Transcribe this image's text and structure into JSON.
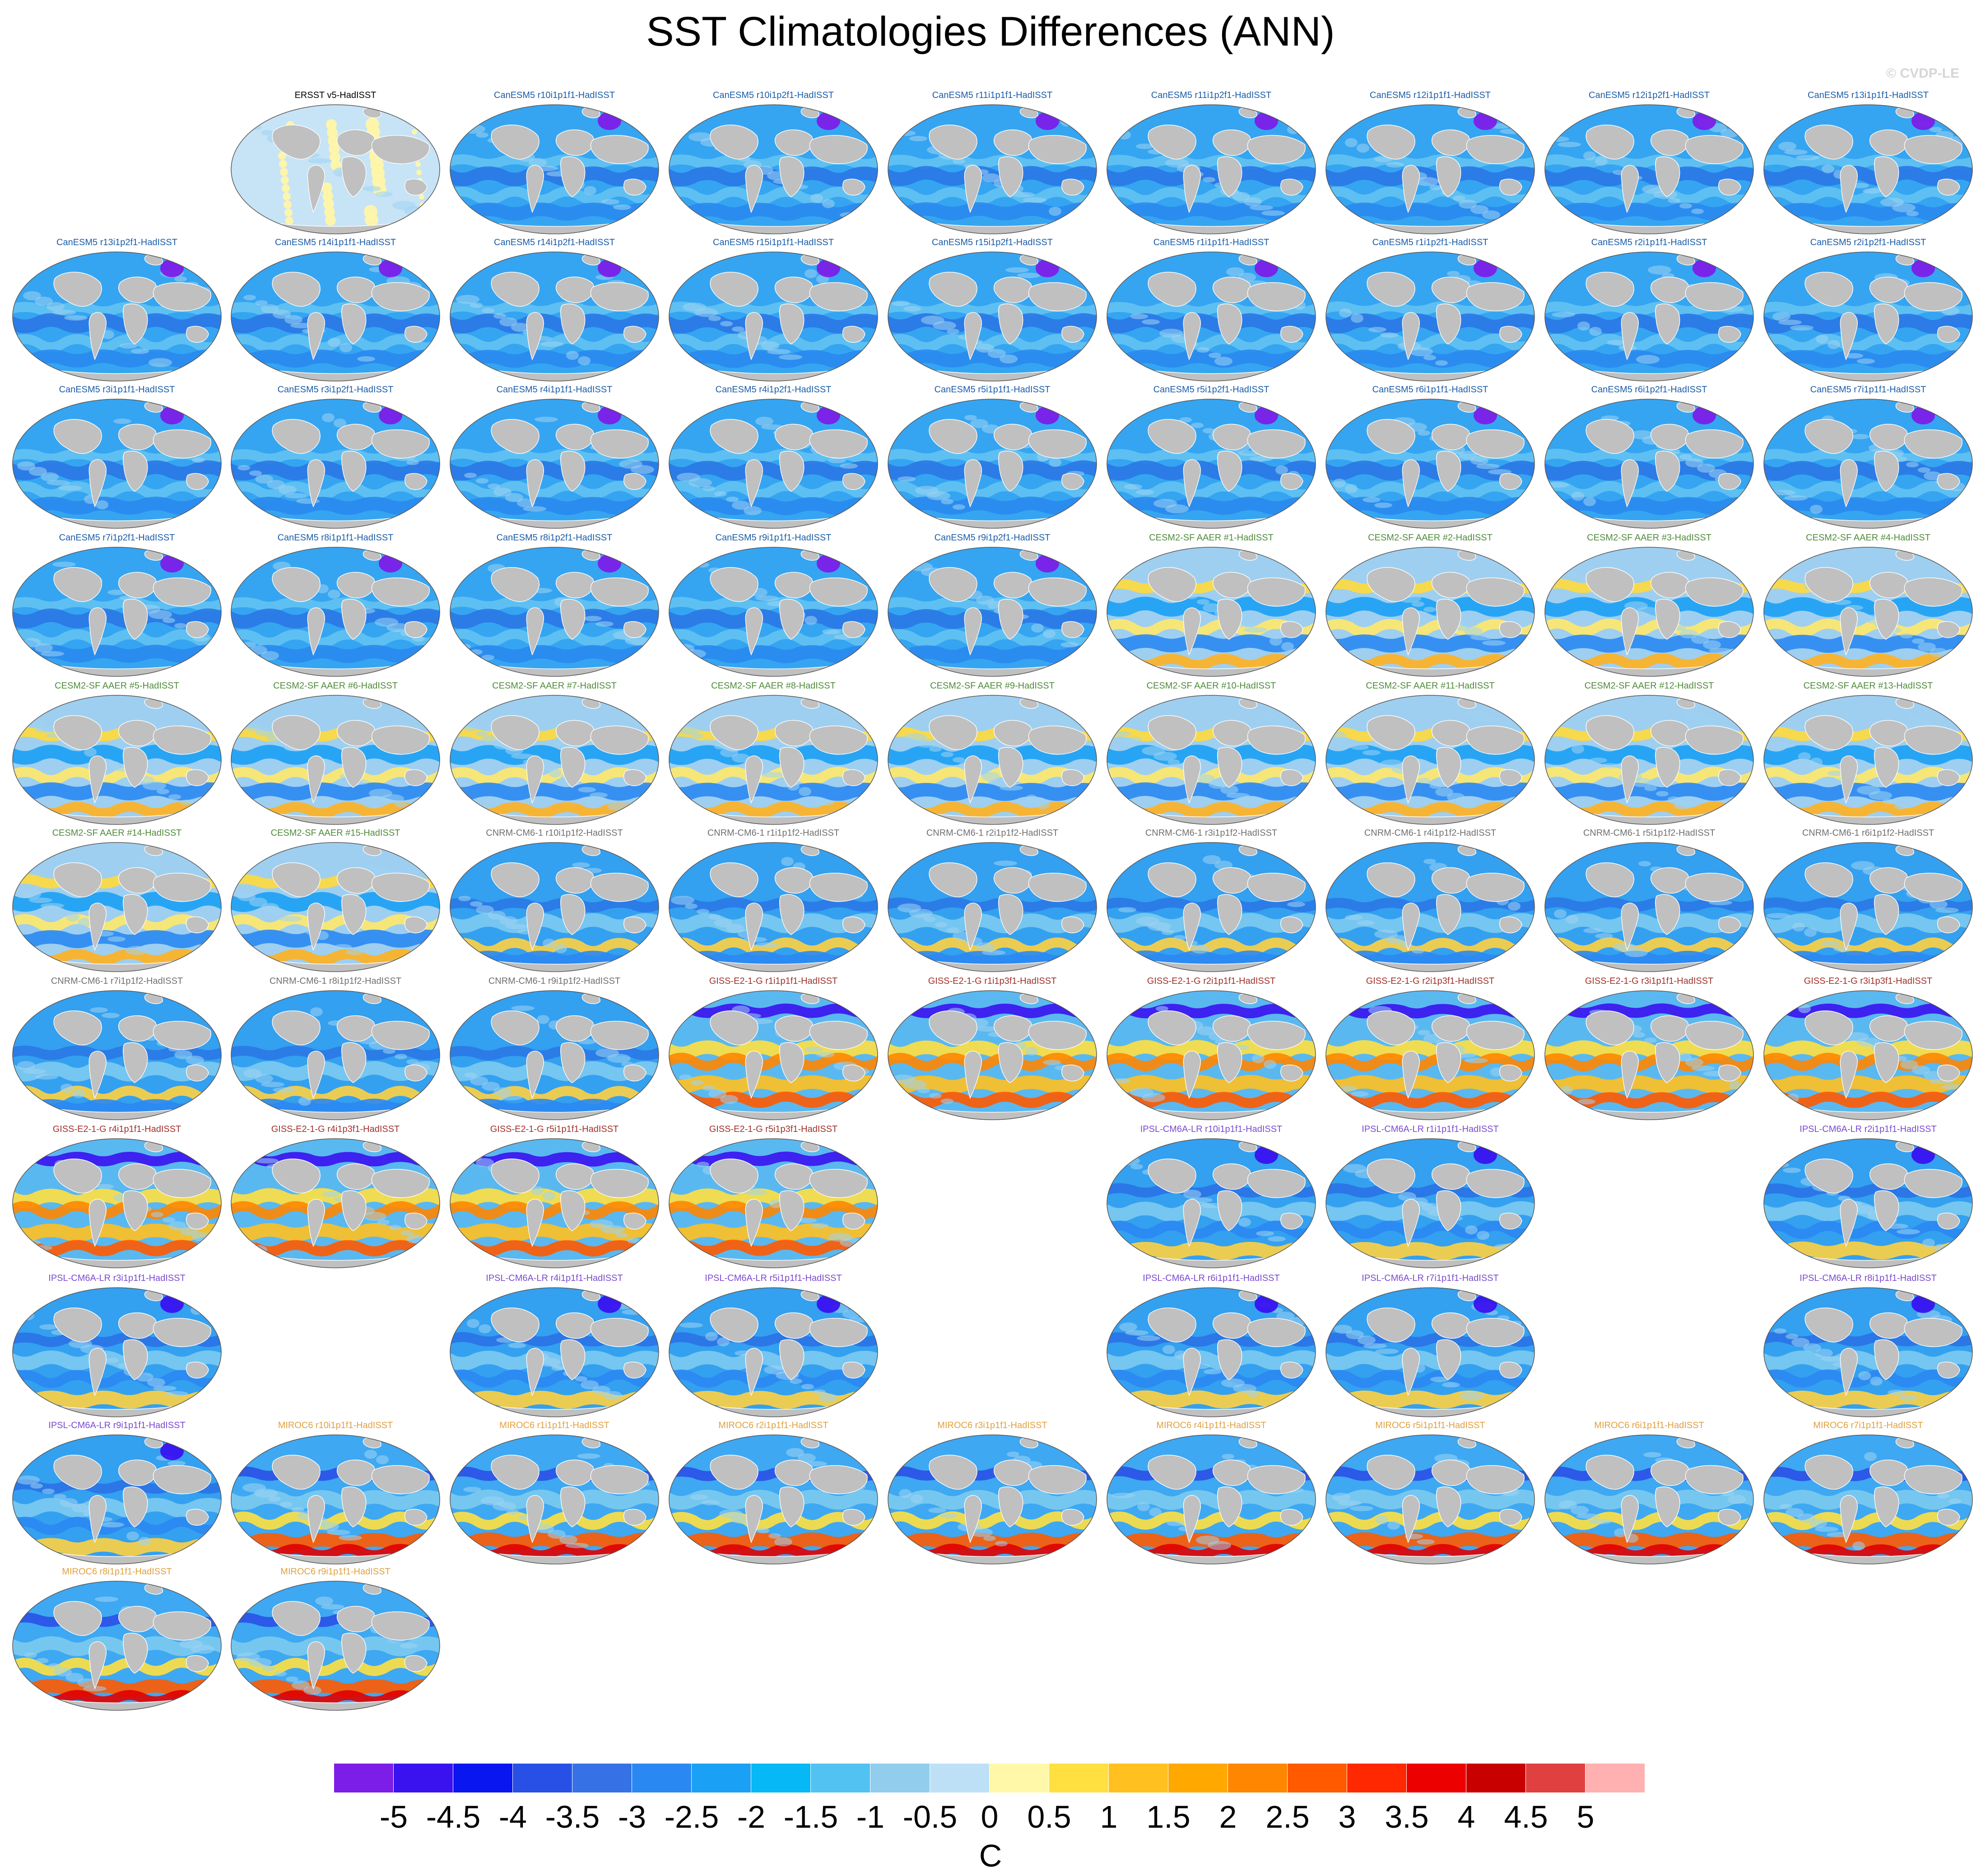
{
  "title": "SST Climatologies Differences (ANN)",
  "credit": "© CVDP-LE",
  "group_colors": {
    "obs": "#000000",
    "CanESM5": "#1a5ca8",
    "CESM2-SF AAER": "#4f8b3a",
    "CNRM-CM6-1": "#707070",
    "GISS-E2-1-G": "#a0302a",
    "IPSL-CM6A-LR": "#7a4ad0",
    "MIROC6": "#e0a040"
  },
  "panel_groups": [
    "obs",
    "CanESM5",
    "CanESM5",
    "CanESM5",
    "CanESM5",
    "CanESM5",
    "CanESM5",
    "CanESM5",
    "CanESM5",
    "CanESM5",
    "CanESM5",
    "CanESM5",
    "CanESM5",
    "CanESM5",
    "CanESM5",
    "CanESM5",
    "CanESM5",
    "CanESM5",
    "CanESM5",
    "CanESM5",
    "CanESM5",
    "CanESM5",
    "CanESM5",
    "CanESM5",
    "CanESM5",
    "CanESM5",
    "CanESM5",
    "CanESM5",
    "CanESM5",
    "CanESM5",
    "CanESM5",
    "CESM2-SF AAER",
    "CESM2-SF AAER",
    "CESM2-SF AAER",
    "CESM2-SF AAER",
    "CESM2-SF AAER",
    "CESM2-SF AAER",
    "CESM2-SF AAER",
    "CESM2-SF AAER",
    "CESM2-SF AAER",
    "CESM2-SF AAER",
    "CESM2-SF AAER",
    "CESM2-SF AAER",
    "CESM2-SF AAER",
    "CESM2-SF AAER",
    "CESM2-SF AAER",
    "CNRM-CM6-1",
    "CNRM-CM6-1",
    "CNRM-CM6-1",
    "CNRM-CM6-1",
    "CNRM-CM6-1",
    "CNRM-CM6-1",
    "CNRM-CM6-1",
    "CNRM-CM6-1",
    "CNRM-CM6-1",
    "CNRM-CM6-1",
    "GISS-E2-1-G",
    "GISS-E2-1-G",
    "GISS-E2-1-G",
    "GISS-E2-1-G",
    "GISS-E2-1-G",
    "GISS-E2-1-G",
    "GISS-E2-1-G",
    "GISS-E2-1-G",
    "GISS-E2-1-G",
    "GISS-E2-1-G",
    "IPSL-CM6A-LR",
    "IPSL-CM6A-LR",
    "IPSL-CM6A-LR",
    "IPSL-CM6A-LR",
    "IPSL-CM6A-LR",
    "IPSL-CM6A-LR",
    "IPSL-CM6A-LR",
    "IPSL-CM6A-LR",
    "IPSL-CM6A-LR",
    "IPSL-CM6A-LR",
    "MIROC6",
    "MIROC6",
    "MIROC6",
    "MIROC6",
    "MIROC6",
    "MIROC6",
    "MIROC6",
    "MIROC6",
    "MIROC6",
    "MIROC6"
  ],
  "panel_labels": [
    "ERSST v5-HadISST",
    "CanESM5 r10i1p1f1-HadISST",
    "CanESM5 r10i1p2f1-HadISST",
    "CanESM5 r11i1p1f1-HadISST",
    "CanESM5 r11i1p2f1-HadISST",
    "CanESM5 r12i1p1f1-HadISST",
    "CanESM5 r12i1p2f1-HadISST",
    "CanESM5 r13i1p1f1-HadISST",
    "CanESM5 r13i1p2f1-HadISST",
    "CanESM5 r14i1p1f1-HadISST",
    "CanESM5 r14i1p2f1-HadISST",
    "CanESM5 r15i1p1f1-HadISST",
    "CanESM5 r15i1p2f1-HadISST",
    "CanESM5 r1i1p1f1-HadISST",
    "CanESM5 r1i1p2f1-HadISST",
    "CanESM5 r2i1p1f1-HadISST",
    "CanESM5 r2i1p2f1-HadISST",
    "CanESM5 r3i1p1f1-HadISST",
    "CanESM5 r3i1p2f1-HadISST",
    "CanESM5 r4i1p1f1-HadISST",
    "CanESM5 r4i1p2f1-HadISST",
    "CanESM5 r5i1p1f1-HadISST",
    "CanESM5 r5i1p2f1-HadISST",
    "CanESM5 r6i1p1f1-HadISST",
    "CanESM5 r6i1p2f1-HadISST",
    "CanESM5 r7i1p1f1-HadISST",
    "CanESM5 r7i1p2f1-HadISST",
    "CanESM5 r8i1p1f1-HadISST",
    "CanESM5 r8i1p2f1-HadISST",
    "CanESM5 r9i1p1f1-HadISST",
    "CanESM5 r9i1p2f1-HadISST",
    "CESM2-SF AAER #1-HadISST",
    "CESM2-SF AAER #2-HadISST",
    "CESM2-SF AAER #3-HadISST",
    "CESM2-SF AAER #4-HadISST",
    "CESM2-SF AAER #5-HadISST",
    "CESM2-SF AAER #6-HadISST",
    "CESM2-SF AAER #7-HadISST",
    "CESM2-SF AAER #8-HadISST",
    "CESM2-SF AAER #9-HadISST",
    "CESM2-SF AAER #10-HadISST",
    "CESM2-SF AAER #11-HadISST",
    "CESM2-SF AAER #12-HadISST",
    "CESM2-SF AAER #13-HadISST",
    "CESM2-SF AAER #14-HadISST",
    "CESM2-SF AAER #15-HadISST",
    "CNRM-CM6-1 r10i1p1f2-HadISST",
    "CNRM-CM6-1 r1i1p1f2-HadISST",
    "CNRM-CM6-1 r2i1p1f2-HadISST",
    "CNRM-CM6-1 r3i1p1f2-HadISST",
    "CNRM-CM6-1 r4i1p1f2-HadISST",
    "CNRM-CM6-1 r5i1p1f2-HadISST",
    "CNRM-CM6-1 r6i1p1f2-HadISST",
    "CNRM-CM6-1 r7i1p1f2-HadISST",
    "CNRM-CM6-1 r8i1p1f2-HadISST",
    "CNRM-CM6-1 r9i1p1f2-HadISST",
    "GISS-E2-1-G r1i1p1f1-HadISST",
    "GISS-E2-1-G r1i1p3f1-HadISST",
    "GISS-E2-1-G r2i1p1f1-HadISST",
    "GISS-E2-1-G r2i1p3f1-HadISST",
    "GISS-E2-1-G r3i1p1f1-HadISST",
    "GISS-E2-1-G r3i1p3f1-HadISST",
    "GISS-E2-1-G r4i1p1f1-HadISST",
    "GISS-E2-1-G r4i1p3f1-HadISST",
    "GISS-E2-1-G r5i1p1f1-HadISST",
    "GISS-E2-1-G r5i1p3f1-HadISST",
    "IPSL-CM6A-LR r10i1p1f1-HadISST",
    "IPSL-CM6A-LR r1i1p1f1-HadISST",
    "IPSL-CM6A-LR r2i1p1f1-HadISST",
    "IPSL-CM6A-LR r3i1p1f1-HadISST",
    "IPSL-CM6A-LR r4i1p1f1-HadISST",
    "IPSL-CM6A-LR r5i1p1f1-HadISST",
    "IPSL-CM6A-LR r6i1p1f1-HadISST",
    "IPSL-CM6A-LR r7i1p1f1-HadISST",
    "IPSL-CM6A-LR r8i1p1f1-HadISST",
    "IPSL-CM6A-LR r9i1p1f1-HadISST",
    "MIROC6 r10i1p1f1-HadISST",
    "MIROC6 r1i1p1f1-HadISST",
    "MIROC6 r2i1p1f1-HadISST",
    "MIROC6 r3i1p1f1-HadISST",
    "MIROC6 r4i1p1f1-HadISST",
    "MIROC6 r5i1p1f1-HadISST",
    "MIROC6 r6i1p1f1-HadISST",
    "MIROC6 r7i1p1f1-HadISST",
    "MIROC6 r8i1p1f1-HadISST",
    "MIROC6 r9i1p1f1-HadISST"
  ],
  "colorbar": {
    "colors": [
      "#7c1de8",
      "#3a12f0",
      "#0a16f0",
      "#2850e6",
      "#3672e6",
      "#2a88f2",
      "#1aa0f4",
      "#06b8f6",
      "#52c2f2",
      "#92cdee",
      "#bde0f6",
      "#fff8a8",
      "#ffe040",
      "#ffc020",
      "#ffa800",
      "#ff8600",
      "#ff5a00",
      "#ff2800",
      "#ec0000",
      "#c80000",
      "#e04040",
      "#ffb0b0"
    ],
    "tick_labels": [
      "-5",
      "-4.5",
      "-4",
      "-3.5",
      "-3",
      "-2.5",
      "-2",
      "-1.5",
      "-1",
      "-0.5",
      "0",
      "0.5",
      "1",
      "1.5",
      "2",
      "2.5",
      "3",
      "3.5",
      "4",
      "4.5",
      "5"
    ],
    "units": "C"
  }
}
